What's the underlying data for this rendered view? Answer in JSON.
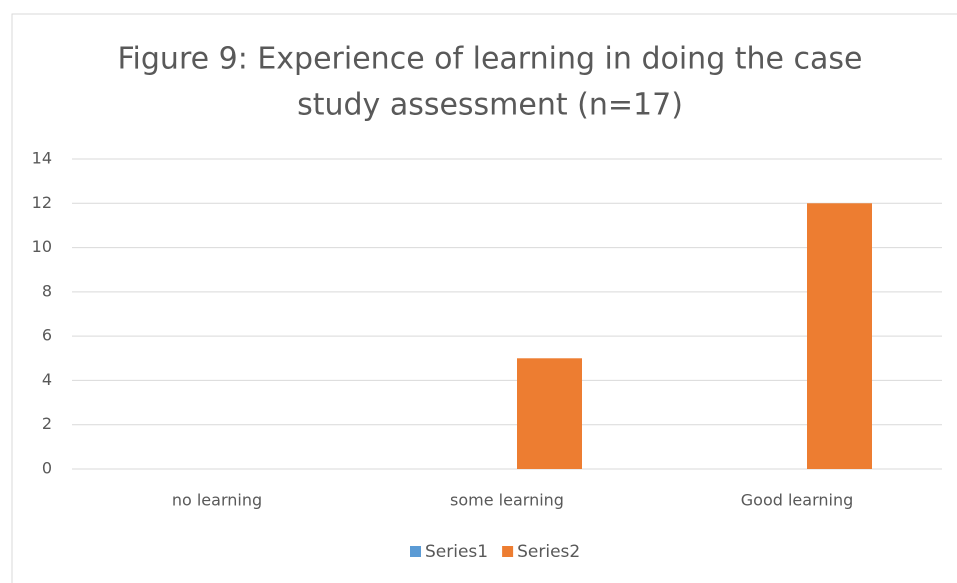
{
  "chart_data": {
    "type": "bar",
    "title": [
      "Figure 9: Experience of learning in doing the case",
      "study assessment  (n=17)"
    ],
    "categories": [
      "no learning",
      "some learning",
      "Good learning"
    ],
    "series": [
      {
        "name": "Series1",
        "color": "#5b9bd5",
        "values": [
          0,
          0,
          0
        ]
      },
      {
        "name": "Series2",
        "color": "#ed7d31",
        "values": [
          0,
          5,
          12
        ]
      }
    ],
    "ylim": [
      0,
      14
    ],
    "yticks": [
      0,
      2,
      4,
      6,
      8,
      10,
      12,
      14
    ],
    "grid": true,
    "legend": "bottom"
  }
}
